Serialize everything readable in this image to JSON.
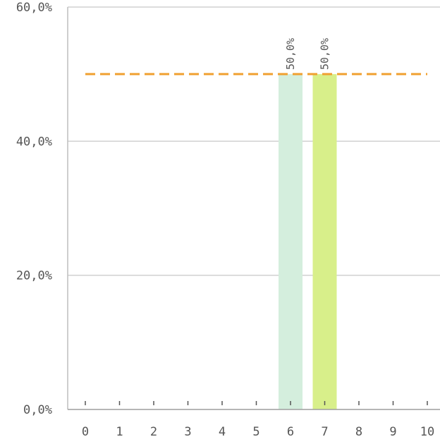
{
  "chart_data": {
    "type": "bar",
    "categories": [
      "0",
      "1",
      "2",
      "3",
      "4",
      "5",
      "6",
      "7",
      "8",
      "9",
      "10"
    ],
    "values": [
      0,
      0,
      0,
      0,
      0,
      0,
      50.0,
      50.0,
      0,
      0,
      0
    ],
    "data_labels": {
      "6": "50,0%",
      "7": "50,0%"
    },
    "bar_colors": {
      "6": "#d4eedd",
      "7": "#d8ef8a"
    },
    "reference_line": {
      "value": 50.0,
      "style": "dashed",
      "color": "#f0a030"
    },
    "ylim": [
      0,
      60
    ],
    "y_ticks": [
      {
        "value": 0,
        "label": "0,0%"
      },
      {
        "value": 20,
        "label": "20,0%"
      },
      {
        "value": 40,
        "label": "40,0%"
      },
      {
        "value": 60,
        "label": "60,0%"
      }
    ],
    "grid": true,
    "legend": "none",
    "title": "",
    "xlabel": "",
    "ylabel": ""
  }
}
